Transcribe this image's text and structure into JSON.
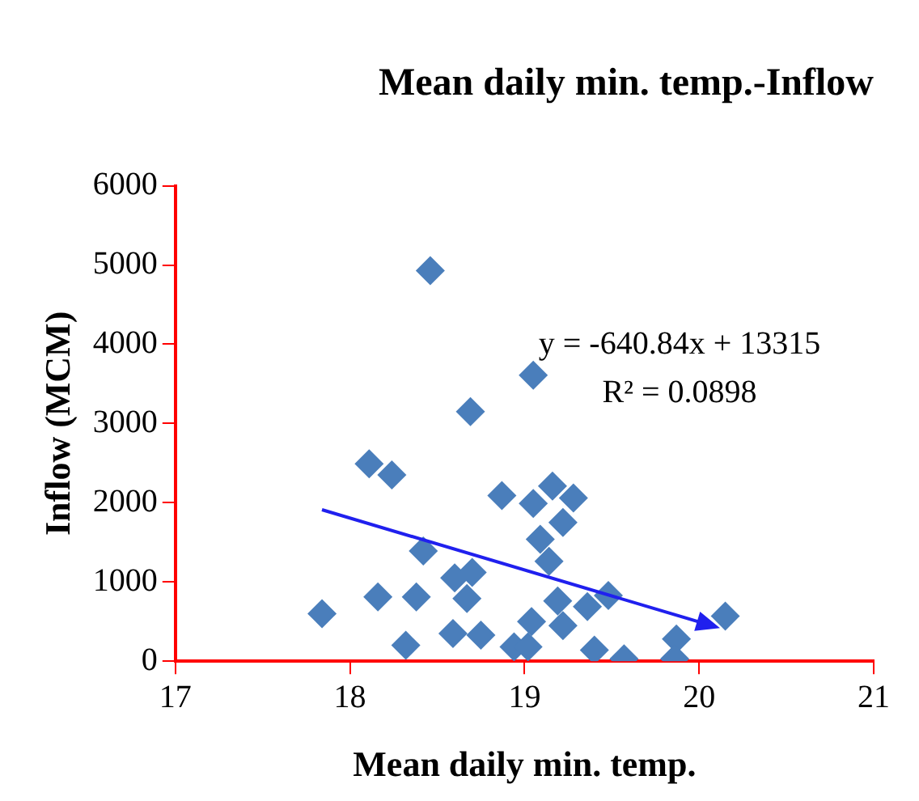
{
  "chart_data": {
    "type": "scatter",
    "title": "Mean daily min. temp.-Inflow",
    "xlabel": "Mean daily min. temp.",
    "ylabel": "Inflow (MCM)",
    "xlim": [
      17,
      21
    ],
    "xticks": [
      17,
      18,
      19,
      20,
      21
    ],
    "ylim": [
      0,
      6000
    ],
    "yticks": [
      0,
      1000,
      2000,
      3000,
      4000,
      5000,
      6000
    ],
    "grid": false,
    "legend": false,
    "marker": "diamond",
    "annotations": [
      "y = -640.84x + 13315",
      "R² = 0.0898"
    ],
    "series": [
      {
        "color": "#4a7ebb",
        "x": [
          17.84,
          18.16,
          18.38,
          18.11,
          18.24,
          18.46,
          18.42,
          18.32,
          18.69,
          18.6,
          18.7,
          18.67,
          18.59,
          18.75,
          18.87,
          18.94,
          19.02,
          19.04,
          19.05,
          19.05,
          19.16,
          19.28,
          19.22,
          19.09,
          19.14,
          19.19,
          19.22,
          19.36,
          19.48,
          19.4,
          19.57,
          19.87,
          19.86,
          20.15
        ],
        "values": [
          600,
          810,
          810,
          2490,
          2350,
          4930,
          1390,
          200,
          3150,
          1050,
          1120,
          790,
          350,
          330,
          2090,
          180,
          180,
          500,
          3610,
          1990,
          2210,
          2060,
          1750,
          1540,
          1260,
          760,
          450,
          690,
          830,
          140,
          30,
          280,
          30,
          570
        ]
      }
    ]
  }
}
